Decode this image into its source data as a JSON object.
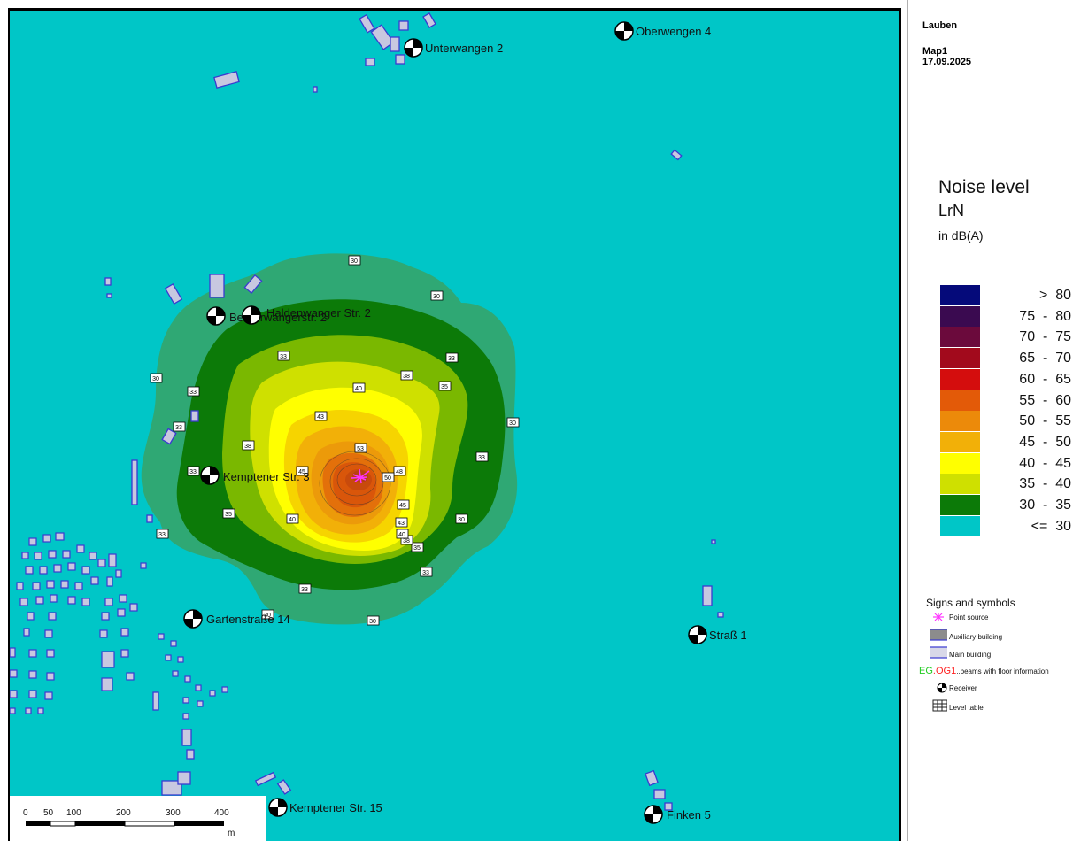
{
  "header": {
    "project": "Lauben",
    "map_name": "Map1",
    "date": "17.09.2025"
  },
  "legend": {
    "title": "Noise level",
    "subtitle": "LrN",
    "unit": "in dB(A)",
    "classes": [
      {
        "label": ">  80",
        "color": "#050a7a"
      },
      {
        "label": "75  -  80",
        "color": "#3a0a50"
      },
      {
        "label": "70  -  75",
        "color": "#6b0a3c"
      },
      {
        "label": "65  -  70",
        "color": "#a20a1c"
      },
      {
        "label": "60  -  65",
        "color": "#d40d0d"
      },
      {
        "label": "55  -  60",
        "color": "#e35a08"
      },
      {
        "label": "50  -  55",
        "color": "#ec8a0a"
      },
      {
        "label": "45  -  50",
        "color": "#f2b008"
      },
      {
        "label": "40  -  45",
        "color": "#ffff00"
      },
      {
        "label": "35  -  40",
        "color": "#cfe000"
      },
      {
        "label": "30  -  35",
        "color": "#0c7a08"
      },
      {
        "label": "<=  30",
        "color": "#00c6c7"
      }
    ]
  },
  "signs": {
    "title": "Signs and symbols",
    "point_source": "Point source",
    "auxiliary_building": "Auxiliary building",
    "main_building": "Main building",
    "floor_eg": "EG",
    "floor_dot": ".",
    "floor_og": "OG1",
    "floor_rest": "..beams with floor information",
    "receiver": "Receiver",
    "level_table": "Level table"
  },
  "receivers": [
    {
      "label": "Unterwangen 2"
    },
    {
      "label": "Oberwengen 4"
    },
    {
      "label": "Bergerwangerstr. 2"
    },
    {
      "label": "Haldenwanger Str. 2"
    },
    {
      "label": "Kemptener Str. 3"
    },
    {
      "label": "Gartenstraße 14"
    },
    {
      "label": "Straß 1"
    },
    {
      "label": "Kemptener Str. 15"
    },
    {
      "label": "Finken 5"
    }
  ],
  "iso_labels": [
    "30",
    "33",
    "35",
    "38",
    "40",
    "43",
    "45",
    "48",
    "50",
    "53"
  ],
  "scale_bar": {
    "ticks": [
      "0",
      "50",
      "100",
      "200",
      "300",
      "400"
    ],
    "unit": "m"
  }
}
